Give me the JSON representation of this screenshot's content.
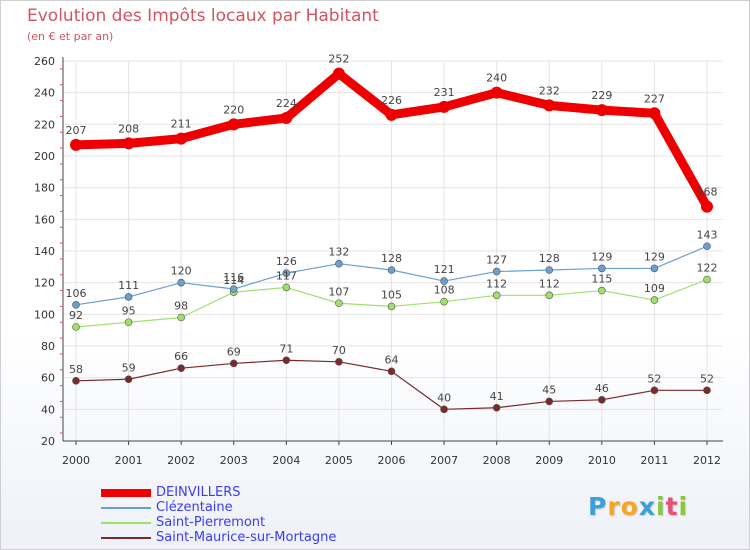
{
  "chart_data": {
    "type": "line",
    "title": "Evolution des Impôts locaux par Habitant",
    "subtitle": "(en € et par an)",
    "xlabel": "",
    "ylabel": "",
    "ylim": [
      20,
      260
    ],
    "yticks": [
      20,
      40,
      60,
      80,
      100,
      120,
      140,
      160,
      180,
      200,
      220,
      240,
      260
    ],
    "categories": [
      "2000",
      "2001",
      "2002",
      "2003",
      "2004",
      "2005",
      "2006",
      "2007",
      "2008",
      "2009",
      "2010",
      "2011",
      "2012"
    ],
    "series": [
      {
        "name": "DEINVILLERS",
        "color": "#ee0000",
        "values": [
          207,
          208,
          211,
          220,
          224,
          252,
          226,
          231,
          240,
          232,
          229,
          227,
          168
        ]
      },
      {
        "name": "Clézentaine",
        "color": "#6a9fd0",
        "values": [
          106,
          111,
          120,
          116,
          126,
          132,
          128,
          121,
          127,
          128,
          129,
          129,
          143
        ]
      },
      {
        "name": "Saint-Pierremont",
        "color": "#9ee06c",
        "values": [
          92,
          95,
          98,
          114,
          117,
          107,
          105,
          108,
          112,
          112,
          115,
          109,
          122
        ]
      },
      {
        "name": "Saint-Maurice-sur-Mortagne",
        "color": "#7a2a2a",
        "values": [
          58,
          59,
          66,
          69,
          71,
          70,
          64,
          40,
          41,
          45,
          46,
          52,
          52
        ]
      }
    ],
    "grid": true,
    "legend_position": "bottom-left"
  },
  "logo": {
    "letters": [
      "P",
      "r",
      "o",
      "x",
      "i",
      "t",
      "i"
    ],
    "colors": [
      "#3aa0d8",
      "#f5a623",
      "#f5a623",
      "#3aa0d8",
      "#8cc63f",
      "#e94e77",
      "#8cc63f"
    ]
  }
}
